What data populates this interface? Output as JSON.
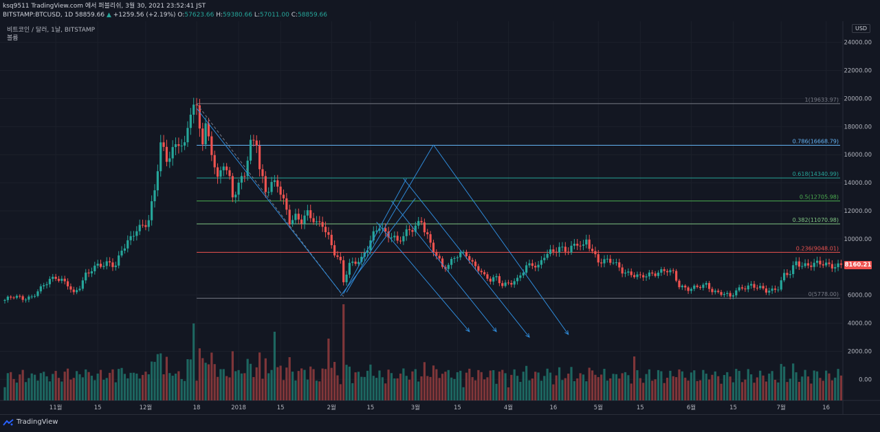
{
  "header": {
    "line1": "ksq9511 TradingView.com 에서 퍼블리쉬, 3월 30, 2021 23:52:41 JST",
    "symbol": "BITSTAMP:BTCUSD, 1D",
    "last": "58859.66",
    "change": "+1259.56 (+2.19%)",
    "o_label": "O:",
    "o": "57623.66",
    "h_label": "H:",
    "h": "59380.66",
    "l_label": "L:",
    "l": "57011.00",
    "c_label": "C:",
    "c": "58859.66"
  },
  "legend": {
    "title": "비트코인 / 달러, 1날, BITSTAMP",
    "volume_label": "볼륨"
  },
  "currency_badge": "USD",
  "current_price_tag": "8160.21",
  "brand": "TradingView",
  "colors": {
    "bg": "#131722",
    "up": "#26a69a",
    "down": "#ef5350",
    "grid": "#1f2330",
    "arrow": "#2f8ad8"
  },
  "chart_data": {
    "type": "candlestick",
    "y_ticks": [
      "24000.00",
      "22000.00",
      "20000.00",
      "18000.00",
      "16000.00",
      "14000.00",
      "12000.00",
      "10000.00",
      "8000.00",
      "6000.00",
      "4000.00",
      "2000.00",
      "0.00"
    ],
    "y_tick_values": [
      24000,
      22000,
      20000,
      18000,
      16000,
      14000,
      12000,
      10000,
      8000,
      6000,
      4000,
      2000,
      0
    ],
    "ylim": [
      -1500,
      25500
    ],
    "x_ticks": [
      {
        "label": "11월",
        "day": 17
      },
      {
        "label": "15",
        "day": 31
      },
      {
        "label": "12월",
        "day": 47
      },
      {
        "label": "18",
        "day": 64
      },
      {
        "label": "2018",
        "day": 78
      },
      {
        "label": "15",
        "day": 92
      },
      {
        "label": "2월",
        "day": 109
      },
      {
        "label": "15",
        "day": 122
      },
      {
        "label": "3월",
        "day": 137
      },
      {
        "label": "15",
        "day": 151
      },
      {
        "label": "4월",
        "day": 168
      },
      {
        "label": "16",
        "day": 183
      },
      {
        "label": "5월",
        "day": 198
      },
      {
        "label": "15",
        "day": 212
      },
      {
        "label": "6월",
        "day": 229
      },
      {
        "label": "15",
        "day": 243
      },
      {
        "label": "7월",
        "day": 259
      },
      {
        "label": "16",
        "day": 274
      }
    ],
    "fib_levels": [
      {
        "label": "1(19633.97)",
        "value": 19633.97,
        "color": "#787b86"
      },
      {
        "label": "0.786(16668.79)",
        "value": 16668.79,
        "color": "#64b5f6"
      },
      {
        "label": "0.618(14340.99)",
        "value": 14340.99,
        "color": "#26a69a"
      },
      {
        "label": "0.5(12705.98)",
        "value": 12705.98,
        "color": "#4caf50"
      },
      {
        "label": "0.382(11070.98)",
        "value": 11070.98,
        "color": "#81c784"
      },
      {
        "label": "0.236(9048.01)",
        "value": 9048.01,
        "color": "#ef5350"
      },
      {
        "label": "0(5778.00)",
        "value": 5778.0,
        "color": "#787b86"
      }
    ],
    "fib_start_day": 64,
    "fib_end_day": 292,
    "close_path": [
      [
        0,
        5650
      ],
      [
        3,
        5850
      ],
      [
        6,
        5800
      ],
      [
        9,
        5900
      ],
      [
        12,
        6400
      ],
      [
        15,
        7100
      ],
      [
        17,
        7350
      ],
      [
        19,
        7100
      ],
      [
        21,
        6700
      ],
      [
        23,
        6000
      ],
      [
        25,
        6600
      ],
      [
        27,
        7550
      ],
      [
        29,
        7900
      ],
      [
        31,
        8050
      ],
      [
        33,
        8050
      ],
      [
        35,
        8300
      ],
      [
        37,
        8200
      ],
      [
        39,
        9300
      ],
      [
        42,
        9900
      ],
      [
        44,
        10600
      ],
      [
        46,
        11000
      ],
      [
        48,
        11500
      ],
      [
        50,
        13500
      ],
      [
        52,
        16500
      ],
      [
        54,
        15600
      ],
      [
        56,
        16400
      ],
      [
        58,
        17200
      ],
      [
        60,
        16500
      ],
      [
        62,
        19000
      ],
      [
        63,
        19200
      ],
      [
        64,
        19000
      ],
      [
        66,
        17200
      ],
      [
        67,
        18200
      ],
      [
        69,
        16400
      ],
      [
        71,
        14000
      ],
      [
        73,
        15300
      ],
      [
        75,
        14200
      ],
      [
        76,
        13200
      ],
      [
        78,
        14000
      ],
      [
        80,
        14700
      ],
      [
        82,
        16500
      ],
      [
        84,
        16900
      ],
      [
        85,
        15000
      ],
      [
        87,
        13600
      ],
      [
        89,
        14000
      ],
      [
        91,
        13800
      ],
      [
        93,
        12500
      ],
      [
        95,
        11300
      ],
      [
        97,
        11700
      ],
      [
        99,
        11400
      ],
      [
        101,
        11700
      ],
      [
        104,
        11000
      ],
      [
        106,
        11200
      ],
      [
        108,
        10200
      ],
      [
        110,
        9000
      ],
      [
        112,
        8200
      ],
      [
        113,
        6900
      ],
      [
        115,
        8200
      ],
      [
        117,
        8500
      ],
      [
        119,
        8600
      ],
      [
        121,
        9300
      ],
      [
        123,
        10200
      ],
      [
        125,
        11000
      ],
      [
        127,
        10500
      ],
      [
        129,
        10300
      ],
      [
        131,
        9700
      ],
      [
        133,
        10100
      ],
      [
        135,
        10700
      ],
      [
        137,
        11000
      ],
      [
        139,
        11400
      ],
      [
        140,
        10600
      ],
      [
        142,
        9500
      ],
      [
        144,
        8800
      ],
      [
        146,
        8100
      ],
      [
        148,
        8200
      ],
      [
        150,
        8700
      ],
      [
        152,
        8800
      ],
      [
        154,
        8900
      ],
      [
        156,
        8300
      ],
      [
        158,
        8000
      ],
      [
        160,
        7300
      ],
      [
        162,
        7000
      ],
      [
        164,
        7200
      ],
      [
        166,
        6800
      ],
      [
        168,
        6900
      ],
      [
        171,
        7000
      ],
      [
        174,
        8000
      ],
      [
        176,
        8300
      ],
      [
        178,
        8100
      ],
      [
        180,
        8800
      ],
      [
        183,
        9000
      ],
      [
        185,
        9400
      ],
      [
        188,
        9300
      ],
      [
        191,
        9600
      ],
      [
        193,
        9300
      ],
      [
        194,
        9900
      ],
      [
        196,
        9200
      ],
      [
        198,
        8500
      ],
      [
        200,
        8400
      ],
      [
        203,
        8300
      ],
      [
        206,
        7800
      ],
      [
        209,
        7500
      ],
      [
        212,
        7200
      ],
      [
        215,
        7500
      ],
      [
        218,
        7700
      ],
      [
        221,
        7700
      ],
      [
        223,
        7500
      ],
      [
        225,
        6700
      ],
      [
        228,
        6500
      ],
      [
        231,
        6500
      ],
      [
        234,
        6700
      ],
      [
        236,
        6400
      ],
      [
        238,
        6200
      ],
      [
        240,
        6100
      ],
      [
        242,
        5800
      ],
      [
        244,
        6300
      ],
      [
        246,
        6600
      ],
      [
        249,
        6700
      ],
      [
        251,
        6500
      ],
      [
        254,
        6300
      ],
      [
        256,
        6400
      ],
      [
        258,
        6600
      ],
      [
        260,
        7400
      ],
      [
        262,
        7500
      ],
      [
        264,
        8300
      ],
      [
        266,
        8200
      ],
      [
        269,
        8200
      ],
      [
        274,
        8160
      ]
    ],
    "pattern_lines": [
      {
        "from": [
          64,
          19633
        ],
        "to": [
          113,
          5900
        ],
        "dashed": true,
        "color": "#787b86"
      },
      {
        "from": [
          64,
          19300
        ],
        "to": [
          112,
          6200
        ],
        "dashed": false,
        "color": "#2f8ad8"
      },
      {
        "from": [
          112,
          5950
        ],
        "to": [
          137,
          12900
        ],
        "dashed": false,
        "color": "#2f8ad8"
      },
      {
        "from": [
          113,
          6100
        ],
        "to": [
          134,
          14300
        ],
        "dashed": false,
        "color": "#2f8ad8"
      },
      {
        "from": [
          114,
          6200
        ],
        "to": [
          143,
          16700
        ],
        "dashed": false,
        "color": "#2f8ad8"
      }
    ],
    "arrow_lines": [
      {
        "from": [
          124,
          11200
        ],
        "to": [
          155,
          3400
        ]
      },
      {
        "from": [
          129,
          12700
        ],
        "to": [
          164,
          3400
        ]
      },
      {
        "from": [
          133,
          14300
        ],
        "to": [
          175,
          3000
        ]
      },
      {
        "from": [
          143,
          16700
        ],
        "to": [
          188,
          3200
        ]
      }
    ]
  }
}
